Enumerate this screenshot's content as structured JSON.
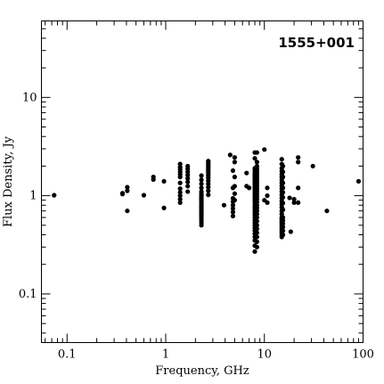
{
  "chart_data": {
    "type": "scatter",
    "title": "1555+001",
    "xlabel": "Frequency, GHz",
    "ylabel": "Flux Density, Jy",
    "xscale": "log",
    "yscale": "log",
    "xlim": [
      0.055,
      100
    ],
    "ylim": [
      0.032,
      60
    ],
    "grid": false,
    "x_ticks": [
      "0.1",
      "1",
      "10",
      "100"
    ],
    "y_ticks": [
      "0.1",
      "1",
      "10"
    ],
    "series": [
      {
        "x": [
          0.074,
          0.365,
          0.365,
          0.408,
          0.408,
          0.408,
          0.6,
          0.75,
          0.75,
          0.96,
          0.96,
          1.4,
          1.4,
          1.4,
          1.4,
          1.4,
          1.4,
          1.4,
          1.4,
          1.4,
          1.4,
          1.4,
          1.4,
          1.67,
          1.67,
          1.67,
          1.67,
          1.67,
          1.67,
          1.67,
          1.67,
          2.3,
          2.3,
          2.3,
          2.3,
          2.3,
          2.3,
          2.3,
          2.3,
          2.3,
          2.3,
          2.3,
          2.3,
          2.3,
          2.3,
          2.3,
          2.3,
          2.3,
          2.3,
          2.3,
          2.3,
          2.3,
          2.3,
          2.7,
          2.7,
          2.7,
          2.7,
          2.7,
          2.7,
          2.7,
          2.7,
          2.7,
          2.7,
          2.7,
          2.7,
          2.7,
          2.7,
          2.7,
          3.9,
          4.5,
          4.8,
          4.8,
          4.8,
          4.8,
          4.8,
          4.8,
          4.8,
          4.8,
          5.0,
          5.0,
          5.0,
          5.0,
          5.0,
          5.0,
          6.6,
          6.6,
          7.0,
          8.0,
          8.0,
          8.0,
          8.0,
          8.0,
          8.0,
          8.0,
          8.0,
          8.0,
          8.0,
          8.0,
          8.0,
          8.0,
          8.0,
          8.0,
          8.0,
          8.0,
          8.0,
          8.0,
          8.0,
          8.0,
          8.0,
          8.0,
          8.0,
          8.0,
          8.0,
          8.0,
          8.0,
          8.0,
          8.0,
          8.0,
          8.0,
          8.0,
          8.0,
          8.0,
          8.4,
          8.4,
          8.4,
          8.4,
          8.4,
          8.4,
          8.4,
          8.4,
          8.4,
          8.4,
          8.4,
          8.4,
          8.4,
          8.4,
          8.4,
          8.4,
          8.4,
          8.4,
          8.4,
          8.4,
          8.4,
          8.4,
          8.4,
          8.4,
          8.4,
          8.4,
          8.4,
          8.4,
          8.4,
          8.4,
          10.0,
          10.0,
          10.7,
          10.7,
          10.7,
          15.0,
          15.0,
          15.0,
          15.0,
          15.0,
          15.0,
          15.0,
          15.0,
          15.0,
          15.0,
          15.0,
          15.0,
          15.0,
          15.0,
          15.0,
          15.0,
          15.0,
          15.0,
          15.0,
          15.0,
          15.0,
          15.0,
          15.0,
          15.0,
          15.0,
          15.0,
          15.0,
          15.0,
          15.0,
          15.0,
          15.4,
          15.4,
          15.4,
          15.4,
          15.4,
          15.4,
          15.4,
          15.4,
          15.4,
          15.4,
          15.4,
          15.4,
          15.4,
          15.4,
          15.4,
          18.0,
          18.5,
          20.0,
          20.0,
          22.0,
          22.0,
          22.0,
          22.0,
          31.0,
          43.0,
          90.0
        ],
        "y": [
          1.01,
          1.04,
          1.06,
          0.7,
          1.12,
          1.22,
          1.01,
          1.46,
          1.55,
          0.75,
          1.4,
          0.85,
          0.92,
          1.0,
          1.08,
          1.18,
          1.35,
          1.55,
          1.65,
          1.75,
          1.85,
          1.95,
          2.1,
          1.1,
          1.25,
          1.38,
          1.5,
          1.62,
          1.75,
          1.88,
          2.0,
          0.5,
          0.53,
          0.56,
          0.59,
          0.62,
          0.65,
          0.68,
          0.71,
          0.74,
          0.77,
          0.8,
          0.84,
          0.88,
          0.92,
          0.96,
          1.0,
          1.05,
          1.1,
          1.2,
          1.32,
          1.45,
          1.6,
          1.02,
          1.12,
          1.22,
          1.32,
          1.42,
          1.52,
          1.6,
          1.68,
          1.76,
          1.84,
          1.92,
          2.0,
          2.08,
          2.16,
          2.25,
          0.8,
          2.6,
          0.62,
          0.68,
          0.74,
          0.8,
          0.87,
          0.94,
          1.2,
          1.8,
          0.9,
          1.05,
          1.25,
          1.55,
          2.2,
          2.45,
          1.25,
          1.7,
          1.2,
          0.27,
          0.31,
          0.35,
          0.38,
          0.41,
          0.44,
          0.47,
          0.5,
          0.53,
          0.56,
          0.6,
          0.64,
          0.68,
          0.72,
          0.76,
          0.8,
          0.85,
          0.9,
          0.95,
          1.0,
          1.06,
          1.12,
          1.18,
          1.24,
          1.3,
          1.36,
          1.42,
          1.48,
          1.55,
          1.62,
          1.7,
          1.8,
          1.9,
          2.4,
          2.75,
          0.3,
          0.34,
          0.38,
          0.42,
          0.46,
          0.5,
          0.55,
          0.6,
          0.65,
          0.7,
          0.75,
          0.8,
          0.86,
          0.92,
          0.98,
          1.04,
          1.1,
          1.17,
          1.24,
          1.31,
          1.38,
          1.46,
          1.54,
          1.62,
          1.7,
          1.8,
          1.9,
          2.0,
          2.2,
          2.75,
          0.9,
          2.95,
          0.85,
          1.0,
          1.2,
          0.38,
          0.4,
          0.42,
          0.44,
          0.46,
          0.48,
          0.5,
          0.52,
          0.54,
          0.56,
          0.58,
          0.6,
          0.65,
          0.7,
          0.76,
          0.82,
          0.88,
          0.95,
          1.02,
          1.1,
          1.18,
          1.26,
          1.35,
          1.45,
          1.55,
          1.65,
          1.78,
          1.9,
          2.1,
          2.35,
          0.4,
          0.44,
          0.48,
          0.52,
          0.56,
          0.6,
          0.72,
          0.84,
          0.96,
          1.08,
          1.2,
          1.35,
          1.55,
          1.75,
          2.0,
          0.95,
          0.43,
          0.85,
          0.92,
          0.85,
          1.2,
          2.2,
          2.45,
          2.0,
          0.7,
          1.4
        ]
      }
    ]
  }
}
